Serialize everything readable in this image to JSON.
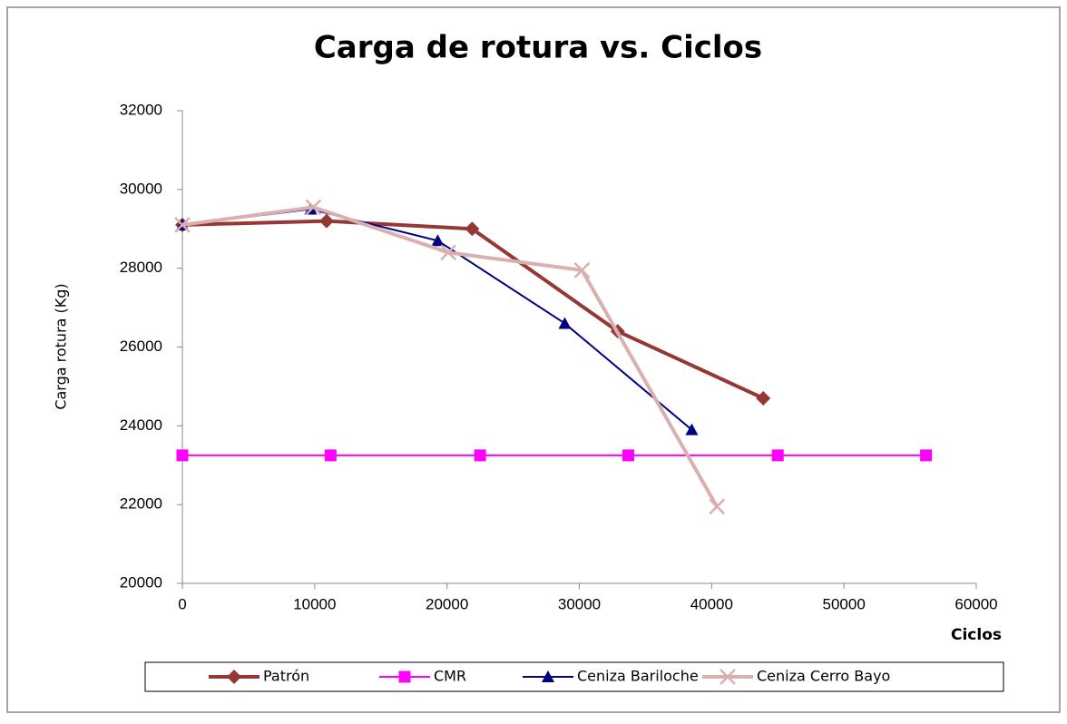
{
  "chart_data": {
    "type": "line",
    "title": "Carga de rotura vs. Ciclos",
    "x_label": "Ciclos",
    "y_label": "Carga rotura (Kg)",
    "xlim": [
      0,
      60000
    ],
    "xticks": [
      0,
      10000,
      20000,
      30000,
      40000,
      50000,
      60000
    ],
    "ylim": [
      20000,
      32000
    ],
    "yticks": [
      20000,
      22000,
      24000,
      26000,
      28000,
      30000,
      32000
    ],
    "grid": false,
    "legend": "bottom",
    "series": [
      {
        "name": "Patrón",
        "color": "#953735",
        "x": [
          0,
          10900,
          21900,
          32900,
          43900
        ],
        "values": [
          29100,
          29200,
          29000,
          26400,
          24700
        ]
      },
      {
        "name": "CMR",
        "color": "#ff00ff",
        "x": [
          0,
          11200,
          22500,
          33700,
          45000,
          56200
        ],
        "values": [
          23250,
          23250,
          23250,
          23250,
          23250,
          23250
        ]
      },
      {
        "name": "Ceniza Bariloche",
        "color": "#000080",
        "x": [
          0,
          9700,
          19300,
          28900,
          38500
        ],
        "values": [
          29100,
          29500,
          28700,
          26600,
          23900
        ]
      },
      {
        "name": "Ceniza Cerro Bayo",
        "color": "#d8b0b0",
        "x": [
          0,
          9900,
          20100,
          30200,
          40400
        ],
        "values": [
          29100,
          29550,
          28400,
          27950,
          21950
        ]
      }
    ]
  }
}
